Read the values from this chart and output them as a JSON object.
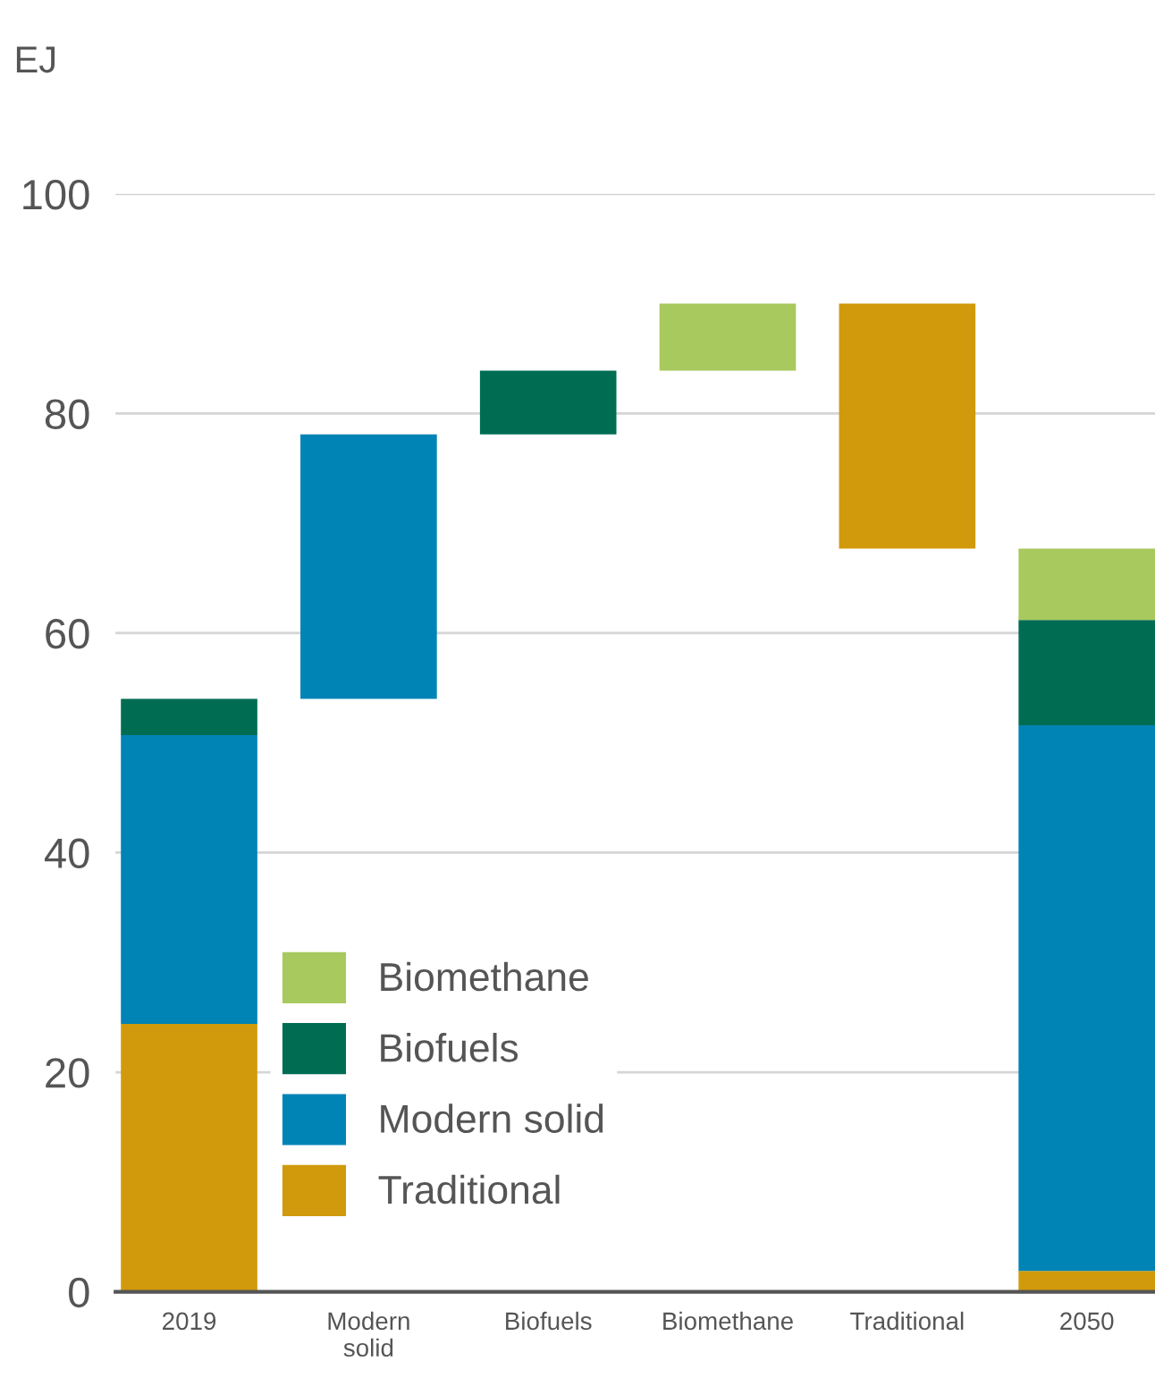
{
  "chart_data": {
    "type": "bar",
    "stacked": true,
    "ylabel": "EJ",
    "categories": [
      "2019",
      "Modern\nsolid",
      "Biofuels",
      "Biomethane",
      "Traditional",
      "2050"
    ],
    "series": [
      {
        "name": "Traditional",
        "color": "#d19a0c",
        "values": [
          24.4,
          null,
          null,
          null,
          22.3,
          1.9
        ],
        "base": [
          null,
          null,
          null,
          null,
          67.7,
          null
        ]
      },
      {
        "name": "Modern solid",
        "color": "#0083b5",
        "values": [
          26.3,
          24.1,
          null,
          null,
          null,
          49.7
        ],
        "base": [
          null,
          54.0,
          null,
          null,
          null,
          null
        ]
      },
      {
        "name": "Biofuels",
        "color": "#006d52",
        "values": [
          3.3,
          null,
          5.8,
          null,
          null,
          9.6
        ],
        "base": [
          null,
          null,
          78.1,
          null,
          null,
          null
        ]
      },
      {
        "name": "Biomethane",
        "color": "#a8c95e",
        "values": [
          null,
          null,
          null,
          6.1,
          null,
          6.5
        ],
        "base": [
          null,
          null,
          null,
          83.9,
          null,
          null
        ]
      }
    ],
    "ylim": [
      0,
      100
    ],
    "yticks": [
      0,
      20,
      40,
      60,
      80,
      100
    ],
    "grid": "y",
    "legend": "lower left"
  }
}
